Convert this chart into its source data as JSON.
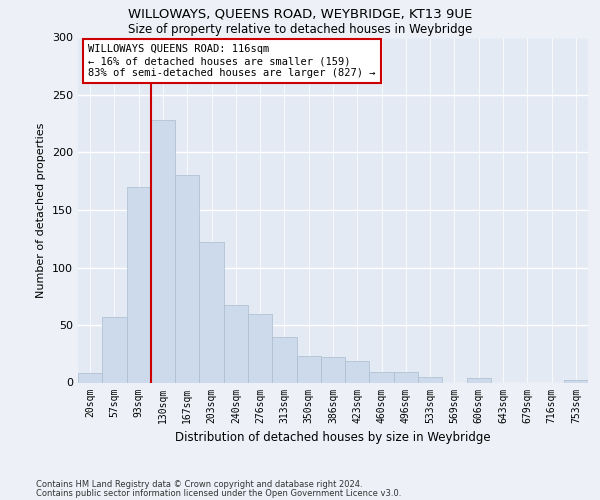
{
  "title": "WILLOWAYS, QUEENS ROAD, WEYBRIDGE, KT13 9UE",
  "subtitle": "Size of property relative to detached houses in Weybridge",
  "xlabel": "Distribution of detached houses by size in Weybridge",
  "ylabel": "Number of detached properties",
  "bar_labels": [
    "20sqm",
    "57sqm",
    "93sqm",
    "130sqm",
    "167sqm",
    "203sqm",
    "240sqm",
    "276sqm",
    "313sqm",
    "350sqm",
    "386sqm",
    "423sqm",
    "460sqm",
    "496sqm",
    "533sqm",
    "569sqm",
    "606sqm",
    "643sqm",
    "679sqm",
    "716sqm",
    "753sqm"
  ],
  "bar_values": [
    8,
    57,
    170,
    228,
    180,
    122,
    67,
    60,
    40,
    23,
    22,
    19,
    9,
    9,
    5,
    0,
    4,
    0,
    0,
    0,
    2
  ],
  "bar_color": "#ccdaeb",
  "bar_edge_color": "#aabcce",
  "vline_color": "#cc0000",
  "annotation_text": "WILLOWAYS QUEENS ROAD: 116sqm\n← 16% of detached houses are smaller (159)\n83% of semi-detached houses are larger (827) →",
  "annotation_box_color": "#ffffff",
  "annotation_box_edge": "#cc0000",
  "background_color": "#edf1f7",
  "plot_bg_color": "#e4eaf4",
  "grid_color": "#ffffff",
  "footer_line1": "Contains HM Land Registry data © Crown copyright and database right 2024.",
  "footer_line2": "Contains public sector information licensed under the Open Government Licence v3.0.",
  "ylim": [
    0,
    300
  ],
  "yticks": [
    0,
    50,
    100,
    150,
    200,
    250,
    300
  ]
}
